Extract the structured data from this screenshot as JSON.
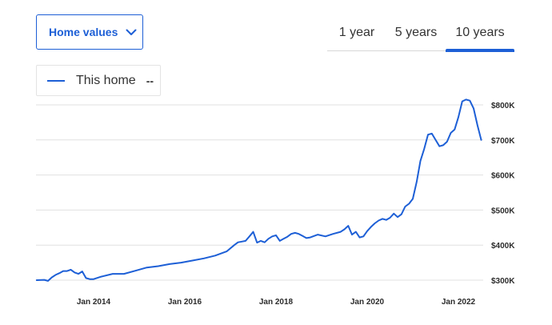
{
  "controls": {
    "metric_select": "Home values",
    "tabs": [
      {
        "label": "1 year",
        "active": false
      },
      {
        "label": "5 years",
        "active": false
      },
      {
        "label": "10 years",
        "active": true
      }
    ]
  },
  "legend": {
    "series_name": "This home",
    "value": "--"
  },
  "colors": {
    "accent": "#1d5fd6",
    "line": "#1d5fd6",
    "grid": "#e0e0e0"
  },
  "icons": {
    "dropdown": "chevron-down-icon"
  },
  "chart_data": {
    "type": "line",
    "title": "",
    "xlabel": "",
    "ylabel": "",
    "grid": true,
    "y_axis_position": "right",
    "ylim": [
      300000,
      800000
    ],
    "y_ticks": [
      300000,
      400000,
      500000,
      600000,
      700000,
      800000
    ],
    "y_tick_labels": [
      "$300K",
      "$400K",
      "$500K",
      "$600K",
      "$700K",
      "$800K"
    ],
    "x_ticks": [
      "2014-01",
      "2016-01",
      "2018-01",
      "2020-01",
      "2022-01"
    ],
    "x_tick_labels": [
      "Jan 2014",
      "Jan 2016",
      "Jan 2018",
      "Jan 2020",
      "Jan 2022"
    ],
    "series": [
      {
        "name": "This home",
        "x": [
          "2012-10",
          "2012-12",
          "2013-01",
          "2013-02",
          "2013-03",
          "2013-04",
          "2013-05",
          "2013-06",
          "2013-07",
          "2013-08",
          "2013-09",
          "2013-10",
          "2013-11",
          "2013-12",
          "2014-01",
          "2014-03",
          "2014-06",
          "2014-09",
          "2014-12",
          "2015-03",
          "2015-06",
          "2015-09",
          "2015-12",
          "2016-03",
          "2016-06",
          "2016-09",
          "2016-12",
          "2017-02",
          "2017-03",
          "2017-04",
          "2017-05",
          "2017-06",
          "2017-07",
          "2017-08",
          "2017-09",
          "2017-10",
          "2017-11",
          "2017-12",
          "2018-01",
          "2018-02",
          "2018-03",
          "2018-04",
          "2018-05",
          "2018-06",
          "2018-07",
          "2018-08",
          "2018-09",
          "2018-10",
          "2018-11",
          "2018-12",
          "2019-02",
          "2019-04",
          "2019-06",
          "2019-07",
          "2019-08",
          "2019-09",
          "2019-10",
          "2019-11",
          "2019-12",
          "2020-01",
          "2020-02",
          "2020-03",
          "2020-04",
          "2020-05",
          "2020-06",
          "2020-07",
          "2020-08",
          "2020-09",
          "2020-10",
          "2020-11",
          "2020-12",
          "2021-01",
          "2021-02",
          "2021-03",
          "2021-04",
          "2021-05",
          "2021-06",
          "2021-07",
          "2021-08",
          "2021-09",
          "2021-10",
          "2021-11",
          "2021-12",
          "2022-01",
          "2022-02",
          "2022-03",
          "2022-04",
          "2022-05",
          "2022-06",
          "2022-07"
        ],
        "values": [
          300000,
          301000,
          298000,
          308000,
          315000,
          320000,
          326000,
          326000,
          330000,
          322000,
          318000,
          325000,
          306000,
          303000,
          303000,
          310000,
          318000,
          318000,
          327000,
          336000,
          340000,
          346000,
          350000,
          356000,
          362000,
          370000,
          382000,
          400000,
          408000,
          410000,
          412000,
          425000,
          438000,
          407000,
          412000,
          408000,
          418000,
          425000,
          428000,
          412000,
          418000,
          424000,
          432000,
          435000,
          432000,
          426000,
          420000,
          422000,
          426000,
          430000,
          425000,
          432000,
          438000,
          445000,
          455000,
          430000,
          438000,
          422000,
          425000,
          440000,
          452000,
          462000,
          470000,
          475000,
          472000,
          478000,
          490000,
          480000,
          488000,
          510000,
          518000,
          532000,
          580000,
          640000,
          675000,
          715000,
          718000,
          700000,
          682000,
          685000,
          695000,
          720000,
          730000,
          765000,
          810000,
          815000,
          812000,
          790000,
          742000,
          700000
        ]
      }
    ]
  }
}
